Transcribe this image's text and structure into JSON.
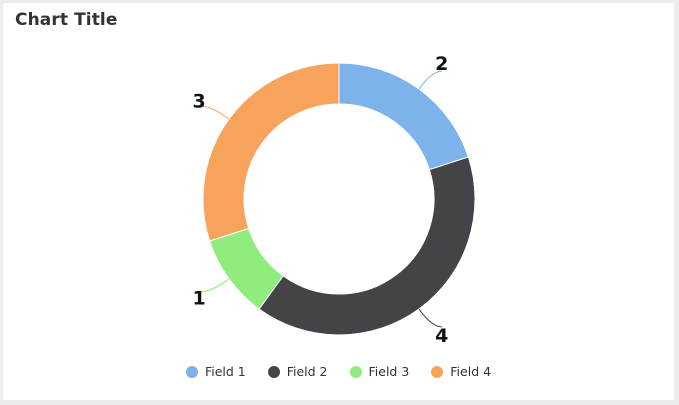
{
  "chart_data": {
    "type": "pie",
    "title": "Chart Title",
    "categories": [
      "Field 1",
      "Field 2",
      "Field 3",
      "Field 4"
    ],
    "values": [
      2,
      4,
      1,
      3
    ],
    "data_labels": [
      "2",
      "4",
      "1",
      "3"
    ],
    "colors": [
      "#7db3ea",
      "#434348",
      "#90ed7d",
      "#f7a35c"
    ],
    "donut": true,
    "legend": "bottom"
  }
}
